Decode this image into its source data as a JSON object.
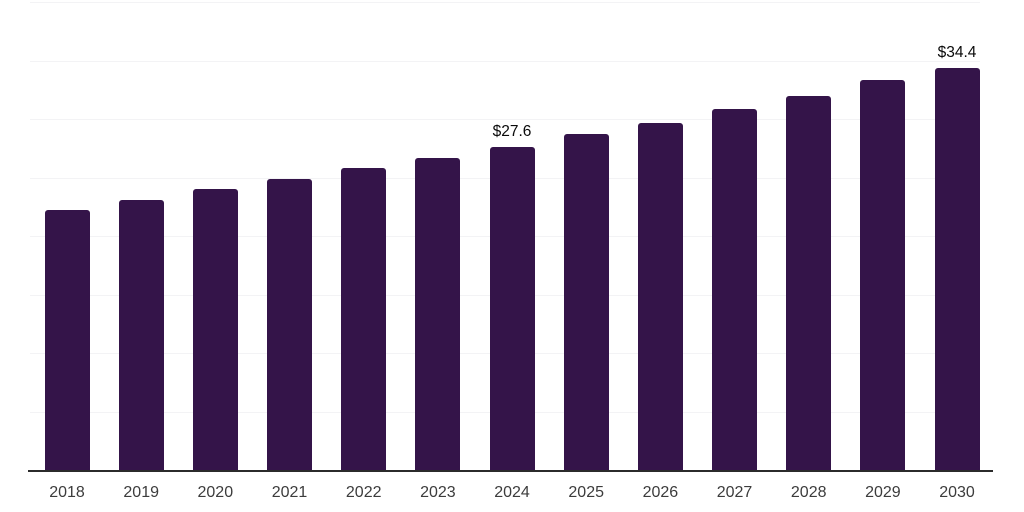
{
  "chart_data": {
    "type": "bar",
    "title": "",
    "xlabel": "",
    "ylabel": "",
    "categories": [
      "2018",
      "2019",
      "2020",
      "2021",
      "2022",
      "2023",
      "2024",
      "2025",
      "2026",
      "2027",
      "2028",
      "2029",
      "2030"
    ],
    "values": [
      22.2,
      23.1,
      24.0,
      24.9,
      25.8,
      26.7,
      27.6,
      28.7,
      29.7,
      30.9,
      32.0,
      33.3,
      34.4
    ],
    "ylim": [
      0,
      40
    ],
    "gridline_step": 5,
    "grid": true,
    "y_tick_labels_visible": false,
    "legend": null,
    "annotations": [
      {
        "category": "2024",
        "label": "$27.6"
      },
      {
        "category": "2030",
        "label": "$34.4"
      }
    ],
    "colors": {
      "bar": "#341449",
      "background": "#ffffff",
      "gridline": "#f3f3f5",
      "axis_line": "#2b2b2b",
      "tick_label": "#3c3c3c",
      "annotation": "#0a0a0a"
    }
  }
}
